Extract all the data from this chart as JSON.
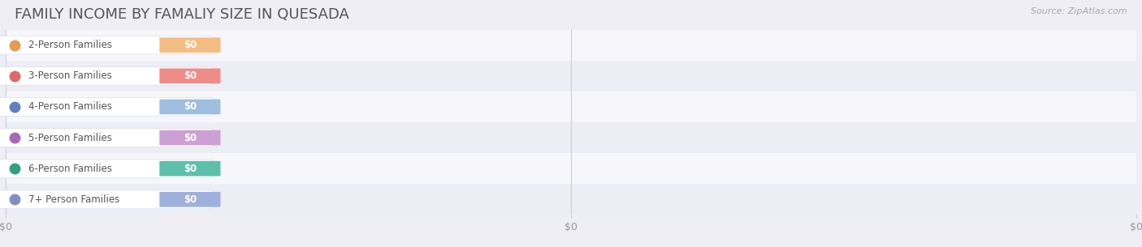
{
  "title": "FAMILY INCOME BY FAMALIY SIZE IN QUESADA",
  "source": "Source: ZipAtlas.com",
  "categories": [
    "2-Person Families",
    "3-Person Families",
    "4-Person Families",
    "5-Person Families",
    "6-Person Families",
    "7+ Person Families"
  ],
  "values": [
    0,
    0,
    0,
    0,
    0,
    0
  ],
  "bar_colors": [
    "#F5BC82",
    "#EE8C88",
    "#A0BEDE",
    "#CCA0D4",
    "#5EC0AA",
    "#A0B0DC"
  ],
  "dot_colors": [
    "#E89A50",
    "#E06868",
    "#6080C0",
    "#A868B8",
    "#30A082",
    "#8090C0"
  ],
  "background_color": "#eeeef4",
  "row_bg_colors": [
    "#f7f7fb",
    "#ededf5"
  ],
  "title_color": "#555555",
  "label_color": "#555555",
  "value_label_color": "#ffffff",
  "tick_label_color": "#999999",
  "source_color": "#aaaaaa",
  "title_fontsize": 13,
  "label_fontsize": 8.5,
  "value_fontsize": 8.5,
  "tick_fontsize": 9,
  "grid_color": "#ccccdd",
  "white_pill_color": "#ffffff",
  "white_pill_edge_color": "#ddddee"
}
